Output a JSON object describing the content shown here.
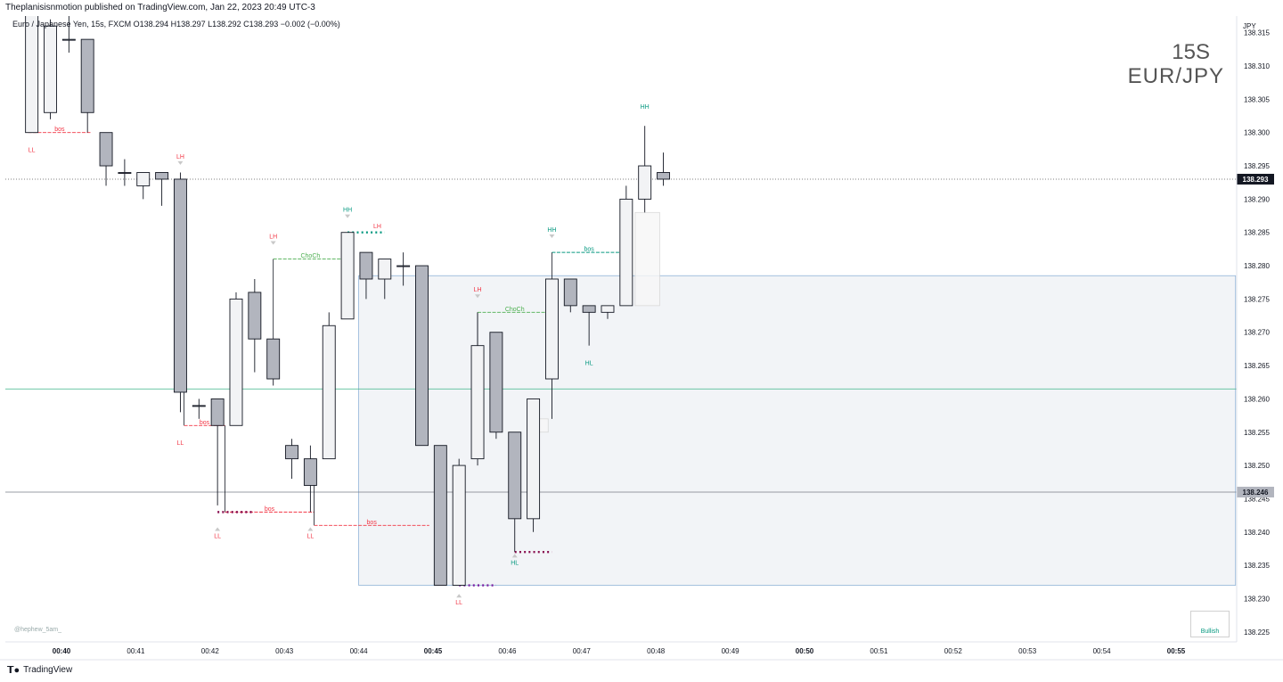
{
  "header": {
    "publisher": "Theplanisisnmotion published on TradingView.com, Jan 22, 2023 20:49 UTC-3",
    "symbol_line": "Euro / Japanese Yen, 15s, FXCM  O138.294  H138.297  L138.292  C138.293  −0.002 (−0.00%)"
  },
  "watermark": {
    "timeframe": "15S",
    "symbol": "EUR/JPY"
  },
  "footer": {
    "brand": "TradingView",
    "credit": "@hephew_5am_"
  },
  "colors": {
    "up_fill": "#f2f3f5",
    "down_fill": "#b2b5be",
    "wick": "#131722",
    "bearish": "#f23645",
    "bullish": "#089981",
    "choch": "#4caf50",
    "zone_fill": "#e9ecf1",
    "zone_border": "#90b4d8",
    "maroon": "#880e4f",
    "purple": "#7b1fa2"
  },
  "chart_data": {
    "type": "candlestick",
    "price_axis_label": "JPY",
    "ylim": [
      138.2235,
      138.3175
    ],
    "y_ticks": [
      "138.315",
      "138.310",
      "138.305",
      "138.300",
      "138.295",
      "138.290",
      "138.285",
      "138.280",
      "138.275",
      "138.270",
      "138.265",
      "138.260",
      "138.255",
      "138.250",
      "138.245",
      "138.240",
      "138.235",
      "138.230",
      "138.225"
    ],
    "x_ticks": [
      {
        "t": 0,
        "label": "00:40",
        "bold": true
      },
      {
        "t": 1,
        "label": "00:41",
        "bold": false
      },
      {
        "t": 2,
        "label": "00:42",
        "bold": false
      },
      {
        "t": 3,
        "label": "00:43",
        "bold": false
      },
      {
        "t": 4,
        "label": "00:44",
        "bold": false
      },
      {
        "t": 5,
        "label": "00:45",
        "bold": true
      },
      {
        "t": 6,
        "label": "00:46",
        "bold": false
      },
      {
        "t": 7,
        "label": "00:47",
        "bold": false
      },
      {
        "t": 8,
        "label": "00:48",
        "bold": false
      },
      {
        "t": 9,
        "label": "00:49",
        "bold": false
      },
      {
        "t": 10,
        "label": "00:50",
        "bold": true
      },
      {
        "t": 11,
        "label": "00:51",
        "bold": false
      },
      {
        "t": 12,
        "label": "00:52",
        "bold": false
      },
      {
        "t": 13,
        "label": "00:53",
        "bold": false
      },
      {
        "t": 14,
        "label": "00:54",
        "bold": false
      },
      {
        "t": 15,
        "label": "00:55",
        "bold": true
      }
    ],
    "candles": [
      {
        "t": -0.4,
        "o": 138.3,
        "h": 138.319,
        "l": 138.3,
        "c": 138.319
      },
      {
        "t": -0.15,
        "o": 138.303,
        "h": 138.317,
        "l": 138.302,
        "c": 138.316
      },
      {
        "t": 0.1,
        "o": 138.314,
        "h": 138.318,
        "l": 138.312,
        "c": 138.314
      },
      {
        "t": 0.35,
        "o": 138.314,
        "h": 138.314,
        "l": 138.3,
        "c": 138.303
      },
      {
        "t": 0.6,
        "o": 138.3,
        "h": 138.3,
        "l": 138.292,
        "c": 138.295
      },
      {
        "t": 0.85,
        "o": 138.294,
        "h": 138.296,
        "l": 138.292,
        "c": 138.294
      },
      {
        "t": 1.1,
        "o": 138.292,
        "h": 138.294,
        "l": 138.29,
        "c": 138.294
      },
      {
        "t": 1.35,
        "o": 138.294,
        "h": 138.294,
        "l": 138.289,
        "c": 138.293
      },
      {
        "t": 1.6,
        "o": 138.293,
        "h": 138.294,
        "l": 138.258,
        "c": 138.261
      },
      {
        "t": 1.85,
        "o": 138.259,
        "h": 138.26,
        "l": 138.257,
        "c": 138.259
      },
      {
        "t": 2.1,
        "o": 138.26,
        "h": 138.26,
        "l": 138.244,
        "c": 138.256
      },
      {
        "t": 2.35,
        "o": 138.256,
        "h": 138.276,
        "l": 138.256,
        "c": 138.275
      },
      {
        "t": 2.6,
        "o": 138.276,
        "h": 138.278,
        "l": 138.264,
        "c": 138.269
      },
      {
        "t": 2.85,
        "o": 138.269,
        "h": 138.269,
        "l": 138.262,
        "c": 138.263
      },
      {
        "t": 3.1,
        "o": 138.253,
        "h": 138.254,
        "l": 138.248,
        "c": 138.251
      },
      {
        "t": 3.35,
        "o": 138.251,
        "h": 138.253,
        "l": 138.243,
        "c": 138.247
      },
      {
        "t": 3.6,
        "o": 138.251,
        "h": 138.273,
        "l": 138.251,
        "c": 138.271
      },
      {
        "t": 3.85,
        "o": 138.272,
        "h": 138.285,
        "l": 138.272,
        "c": 138.285
      },
      {
        "t": 4.1,
        "o": 138.282,
        "h": 138.282,
        "l": 138.275,
        "c": 138.278
      },
      {
        "t": 4.35,
        "o": 138.278,
        "h": 138.281,
        "l": 138.275,
        "c": 138.281
      },
      {
        "t": 4.6,
        "o": 138.28,
        "h": 138.282,
        "l": 138.277,
        "c": 138.28
      },
      {
        "t": 4.85,
        "o": 138.28,
        "h": 138.28,
        "l": 138.253,
        "c": 138.253
      },
      {
        "t": 5.1,
        "o": 138.253,
        "h": 138.253,
        "l": 138.232,
        "c": 138.232
      },
      {
        "t": 5.35,
        "o": 138.232,
        "h": 138.251,
        "l": 138.232,
        "c": 138.25
      },
      {
        "t": 5.6,
        "o": 138.251,
        "h": 138.273,
        "l": 138.25,
        "c": 138.268
      },
      {
        "t": 5.85,
        "o": 138.27,
        "h": 138.27,
        "l": 138.254,
        "c": 138.255
      },
      {
        "t": 6.1,
        "o": 138.255,
        "h": 138.255,
        "l": 138.237,
        "c": 138.242
      },
      {
        "t": 6.35,
        "o": 138.242,
        "h": 138.26,
        "l": 138.24,
        "c": 138.26
      },
      {
        "t": 6.6,
        "o": 138.263,
        "h": 138.278,
        "l": 138.257,
        "c": 138.278
      },
      {
        "t": 6.85,
        "o": 138.278,
        "h": 138.278,
        "l": 138.273,
        "c": 138.274
      },
      {
        "t": 7.1,
        "o": 138.274,
        "h": 138.274,
        "l": 138.268,
        "c": 138.273
      },
      {
        "t": 7.35,
        "o": 138.273,
        "h": 138.274,
        "l": 138.272,
        "c": 138.274
      },
      {
        "t": 7.6,
        "o": 138.274,
        "h": 138.292,
        "l": 138.274,
        "c": 138.29
      },
      {
        "t": 7.85,
        "o": 138.29,
        "h": 138.301,
        "l": 138.288,
        "c": 138.295
      },
      {
        "t": 8.1,
        "o": 138.294,
        "h": 138.297,
        "l": 138.292,
        "c": 138.293
      }
    ],
    "horizontal_lines": [
      {
        "price": 138.293,
        "style": "dotted",
        "color": "#555555",
        "label": "138.293",
        "label_bg": "#131722",
        "label_fg": "#ffffff"
      },
      {
        "price": 138.2615,
        "style": "solid",
        "color": "#3eb489",
        "label": "",
        "label_bg": "",
        "label_fg": ""
      },
      {
        "price": 138.246,
        "style": "solid",
        "color": "#787b86",
        "label": "138.246",
        "label_bg": "#b2b5be",
        "label_fg": "#131722"
      }
    ],
    "zones": [
      {
        "t1": 4.0,
        "t2": 15.8,
        "p1": 138.2785,
        "p2": 138.232
      },
      {
        "t1": 7.72,
        "t2": 8.05,
        "p1": 138.288,
        "p2": 138.274
      },
      {
        "t1": 6.35,
        "t2": 6.55,
        "p1": 138.257,
        "p2": 138.255
      }
    ],
    "structure_lines": [
      {
        "t1": -0.45,
        "t2": 0.4,
        "p": 138.3,
        "label": "bos",
        "kind": "bos_bear"
      },
      {
        "t1": 1.65,
        "t2": 2.2,
        "p": 138.256,
        "label": "bos",
        "kind": "bos_bear"
      },
      {
        "t1": 2.2,
        "t2": 3.4,
        "p": 138.243,
        "label": "bos",
        "kind": "bos_bear"
      },
      {
        "t1": 3.4,
        "t2": 4.95,
        "p": 138.241,
        "label": "bos",
        "kind": "bos_bear"
      },
      {
        "t1": 2.85,
        "t2": 3.85,
        "p": 138.281,
        "label": "ChoCh",
        "kind": "choch"
      },
      {
        "t1": 5.6,
        "t2": 6.6,
        "p": 138.273,
        "label": "ChoCh",
        "kind": "choch"
      },
      {
        "t1": 6.6,
        "t2": 7.6,
        "p": 138.282,
        "label": "bos",
        "kind": "bos_bull"
      }
    ],
    "dotted_levels": [
      {
        "t1": 3.85,
        "t2": 4.35,
        "p": 138.285,
        "color": "#089981"
      },
      {
        "t1": 2.1,
        "t2": 2.6,
        "p": 138.243,
        "color": "#880e4f"
      },
      {
        "t1": 6.1,
        "t2": 6.6,
        "p": 138.237,
        "color": "#880e4f"
      },
      {
        "t1": 5.35,
        "t2": 5.85,
        "p": 138.232,
        "color": "#7b1fa2"
      }
    ],
    "swing_labels": [
      {
        "t": -0.4,
        "p": 138.2975,
        "text": "LL",
        "side": "bear",
        "marker": false
      },
      {
        "t": 1.6,
        "p": 138.2965,
        "text": "LH",
        "side": "bear",
        "marker": true,
        "marker_dir": "down"
      },
      {
        "t": 1.6,
        "p": 138.2535,
        "text": "LL",
        "side": "bear",
        "marker": false
      },
      {
        "t": 2.85,
        "p": 138.2845,
        "text": "LH",
        "side": "bear",
        "marker": true,
        "marker_dir": "down"
      },
      {
        "t": 2.1,
        "p": 138.2395,
        "text": "LL",
        "side": "bear",
        "marker": true,
        "marker_dir": "up"
      },
      {
        "t": 3.85,
        "p": 138.2885,
        "text": "HH",
        "side": "bull",
        "marker": true,
        "marker_dir": "down"
      },
      {
        "t": 3.35,
        "p": 138.2395,
        "text": "LL",
        "side": "bear",
        "marker": true,
        "marker_dir": "up"
      },
      {
        "t": 4.25,
        "p": 138.286,
        "text": "LH",
        "side": "bear",
        "marker": false
      },
      {
        "t": 5.6,
        "p": 138.2765,
        "text": "LH",
        "side": "bear",
        "marker": true,
        "marker_dir": "down"
      },
      {
        "t": 5.35,
        "p": 138.2295,
        "text": "LL",
        "side": "bear",
        "marker": true,
        "marker_dir": "up"
      },
      {
        "t": 6.1,
        "p": 138.2355,
        "text": "HL",
        "side": "bull",
        "marker": true,
        "marker_dir": "up"
      },
      {
        "t": 6.6,
        "p": 138.2855,
        "text": "HH",
        "side": "bull",
        "marker": true,
        "marker_dir": "down"
      },
      {
        "t": 7.1,
        "p": 138.2655,
        "text": "HL",
        "side": "bull",
        "marker": false
      },
      {
        "t": 7.85,
        "p": 138.304,
        "text": "HH",
        "side": "bull",
        "marker": false
      }
    ],
    "indicator_status": "Bullish"
  }
}
